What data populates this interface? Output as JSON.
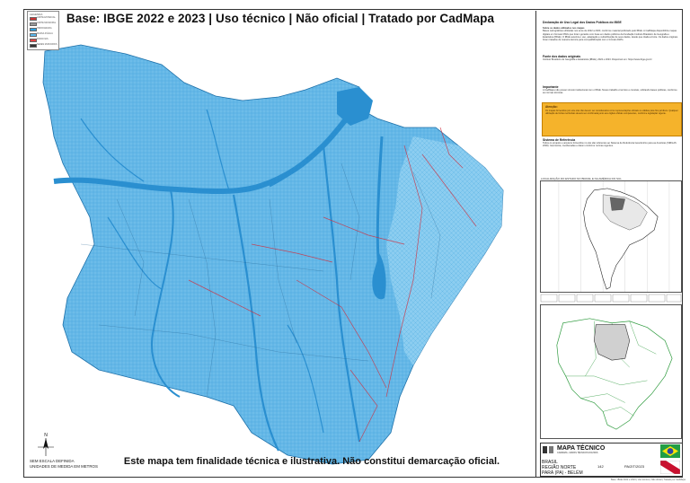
{
  "header": {
    "title": "Base: IBGE 2022 e 2023 | Uso técnico | Não oficial | Tratado por CadMapa"
  },
  "disclaimer": "Este mapa tem finalidade técnica e ilustrativa. Não constitui demarcação oficial.",
  "scale": {
    "line1": "SEM ESCALA DEFINIDA",
    "line2": "UNIDADES DE MEDIDA EM METROS"
  },
  "legend": {
    "title": "LEGENDA",
    "items": [
      {
        "label": "LIMITE ESTADUAL",
        "color": "#cc3333"
      },
      {
        "label": "LIMITE MUNICIPAL",
        "color": "#999999"
      },
      {
        "label": "HIDROGRAFIA",
        "color": "#2ba0e0"
      },
      {
        "label": "MASSA D'ÁGUA",
        "color": "#5bb8ee"
      },
      {
        "label": "RODOVIAS",
        "color": "#dd4444"
      },
      {
        "label": "SEDES MUNICIPAIS",
        "color": "#333333"
      }
    ]
  },
  "panel": {
    "section1_title": "Declaração de Uso Legal dos Dados Públicos do IBGE",
    "section1_sub": "Sobre os dados utilizados nos mapas",
    "section1_body": "Bases cartográficas utilizadas nos anos de 2022 a 2023, conforme material publicado pelo IBGE. A CadMapa disponibiliza mapas digitais em formato DWG que foram gerados com base em dados públicos da Fundação Instituto Brasileiro de Geografia e Estatística (IBGE). O IBGE autoriza o uso, adaptação e redistribuição de seus dados, desde que citada a fonte. Os dados originais foram tratados de maneira técnica para compatibilização com o formato DWG.",
    "section2_title": "Fonte dos dados originais",
    "section2_body": "Instituto Brasileiro de Geografia e Estatística (IBGE), 2022 e 2023. Disponível em: https://www.ibge.gov.br",
    "section3_title": "Importante",
    "section3_body": "A CadMapa não possui vínculo institucional com o IBGE. Nosso trabalho é técnico e consiste, utilizando bases públicas, conforme as normas técnicas.",
    "warning_title": "Atenção:",
    "warning_body": "Os mapas fornecidos por este site não devem ser considerados como representações oficiais ou válidas para fins jurídicos. Qualquer utilização de limites territoriais deverá ser confirmada junto aos órgãos oficiais competentes, conforme legislação vigente.",
    "section4_title": "Sistema de Referência",
    "section4_body": "Todos os projetos e arquivos fornecidos no site são referentes ao Sistema de Referência Geocêntrico para as Américas (SIRGAS 2000). Geometria, coordenadas e datum conforme normas vigentes.",
    "mini_title": "LOCALIZAÇÃO DO ESTADO NO BRASIL E NA AMÉRICA DO SUL"
  },
  "title_block": {
    "brand": "MAPA TÉCNICO",
    "sub": "CADMAPA - MAPAS TÉCNICOS DIGITAIS",
    "country": "BRASIL",
    "region": "REGIÃO NORTE",
    "state": "PARÁ (PA) - BELÉM",
    "code": "142",
    "sheet": "PA/2IT/2023"
  },
  "footer": "Base: IBGE 2022 e 2023 | Uso técnico | Não oficial | Tratado por CadMapa",
  "colors": {
    "water": "#2f9ad8",
    "land": "#5fb3e6",
    "roads": "#cc3344",
    "warning": "#f5b32b"
  }
}
